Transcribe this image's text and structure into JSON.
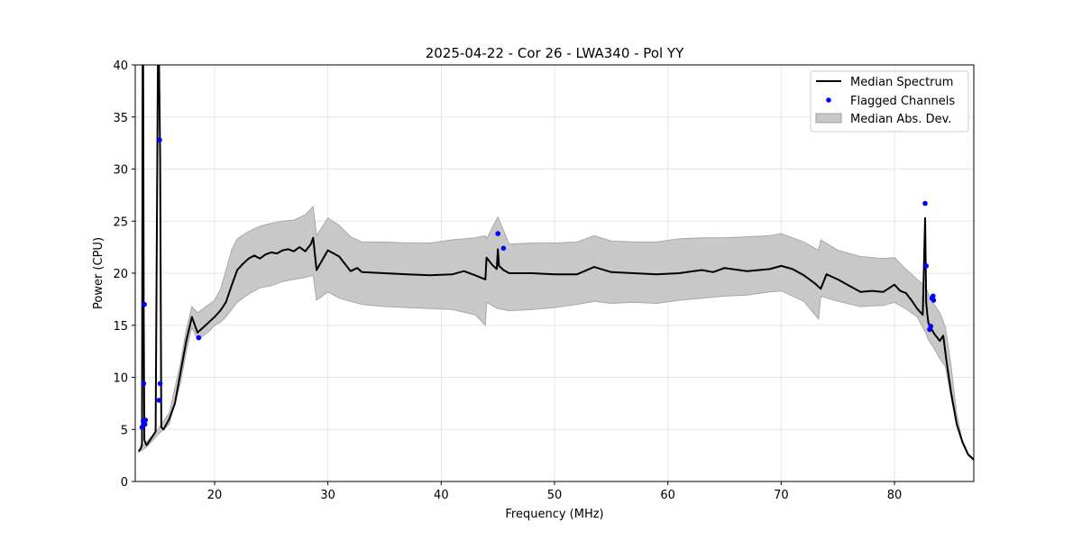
{
  "chart_data": {
    "type": "line",
    "title": "2025-04-22 - Cor 26 - LWA340 - Pol YY",
    "xlabel": "Frequency (MHz)",
    "ylabel": "Power (CPU)",
    "xlim": [
      13.0,
      87.0
    ],
    "ylim": [
      0,
      40
    ],
    "xticks": [
      20,
      30,
      40,
      50,
      60,
      70,
      80
    ],
    "yticks": [
      0,
      5,
      10,
      15,
      20,
      25,
      30,
      35,
      40
    ],
    "grid": true,
    "legend_position": "top-right",
    "series": [
      {
        "name": "Median Spectrum",
        "kind": "line",
        "color": "#000000",
        "x": [
          13.3,
          13.5,
          13.6,
          13.65,
          13.7,
          13.75,
          13.8,
          13.9,
          14.0,
          14.2,
          14.5,
          14.8,
          15.0,
          15.1,
          15.2,
          15.3,
          15.5,
          16.0,
          16.5,
          17.0,
          17.5,
          18.0,
          18.5,
          19.0,
          19.5,
          20.0,
          20.5,
          21.0,
          21.5,
          22.0,
          22.5,
          23.0,
          23.5,
          24.0,
          24.5,
          25.0,
          25.5,
          26.0,
          26.5,
          27.0,
          27.5,
          28.0,
          28.5,
          28.7,
          29.0,
          30.0,
          31.0,
          32.0,
          32.6,
          33.0,
          35.0,
          37.0,
          39.0,
          41.0,
          42.0,
          43.0,
          43.9,
          44.0,
          44.5,
          44.9,
          45.0,
          45.1,
          45.5,
          46.0,
          48.0,
          50.0,
          52.0,
          53.5,
          55.0,
          57.0,
          59.0,
          61.0,
          63.0,
          64.0,
          65.0,
          67.0,
          69.0,
          70.0,
          71.0,
          72.0,
          73.0,
          73.5,
          74.0,
          75.0,
          76.0,
          77.0,
          78.0,
          79.0,
          80.0,
          80.5,
          81.0,
          81.5,
          82.0,
          82.5,
          82.7,
          82.8,
          82.9,
          83.0,
          83.2,
          83.5,
          84.0,
          84.3,
          84.6,
          85.0,
          85.5,
          86.0,
          86.5,
          87.0
        ],
        "y": [
          2.9,
          3.2,
          3.6,
          40.0,
          40.0,
          16.0,
          4.0,
          3.7,
          3.5,
          3.8,
          4.3,
          4.8,
          40.0,
          40.0,
          31.2,
          5.2,
          5.0,
          6.0,
          7.5,
          10.5,
          13.5,
          15.8,
          14.3,
          14.8,
          15.3,
          15.8,
          16.4,
          17.2,
          18.8,
          20.3,
          20.9,
          21.4,
          21.7,
          21.4,
          21.8,
          22.0,
          21.9,
          22.2,
          22.3,
          22.1,
          22.5,
          22.1,
          22.8,
          23.4,
          20.3,
          22.2,
          21.6,
          20.2,
          20.5,
          20.1,
          20.0,
          19.9,
          19.8,
          19.9,
          20.2,
          19.8,
          19.4,
          21.5,
          20.8,
          20.4,
          22.3,
          20.7,
          20.3,
          20.0,
          20.0,
          19.9,
          19.9,
          20.6,
          20.1,
          20.0,
          19.9,
          20.0,
          20.3,
          20.1,
          20.5,
          20.2,
          20.4,
          20.7,
          20.4,
          19.8,
          19.0,
          18.5,
          19.9,
          19.4,
          18.8,
          18.2,
          18.3,
          18.2,
          18.9,
          18.3,
          18.1,
          17.4,
          16.6,
          16.0,
          25.3,
          17.2,
          16.0,
          15.2,
          14.8,
          14.2,
          13.5,
          14.0,
          11.5,
          8.5,
          5.5,
          3.8,
          2.6,
          2.1
        ]
      },
      {
        "name": "Flagged Channels",
        "kind": "scatter",
        "color": "#0000ff",
        "x": [
          13.6,
          13.7,
          13.75,
          13.8,
          13.85,
          13.9,
          15.1,
          15.15,
          15.2,
          18.6,
          45.0,
          45.5,
          82.7,
          82.8,
          83.1,
          83.2,
          83.3,
          83.4,
          83.45
        ],
        "y": [
          5.2,
          5.8,
          9.4,
          17.0,
          5.5,
          5.9,
          7.8,
          32.8,
          9.4,
          13.8,
          23.8,
          22.4,
          26.7,
          20.7,
          14.6,
          14.9,
          17.6,
          17.8,
          17.4
        ]
      },
      {
        "name": "Median Abs. Dev.",
        "kind": "band",
        "color": "#c8c8c8",
        "x": [
          13.3,
          14.0,
          15.0,
          16.0,
          17.0,
          17.5,
          18.0,
          18.5,
          19.0,
          19.5,
          20.0,
          20.5,
          21.0,
          21.5,
          22.0,
          23.0,
          24.0,
          25.0,
          26.0,
          27.0,
          28.0,
          28.7,
          29.0,
          30.0,
          31.0,
          32.0,
          33.0,
          35.0,
          37.0,
          39.0,
          41.0,
          43.0,
          43.9,
          44.0,
          45.0,
          46.0,
          48.0,
          50.0,
          52.0,
          53.5,
          55.0,
          57.0,
          59.0,
          61.0,
          63.0,
          65.0,
          67.0,
          69.0,
          70.0,
          72.0,
          73.3,
          73.5,
          75.0,
          77.0,
          79.0,
          80.0,
          81.0,
          82.0,
          82.7,
          83.0,
          83.5,
          84.0,
          84.5,
          85.0,
          85.5,
          86.0,
          86.5,
          87.0
        ],
        "lower": [
          2.8,
          3.3,
          4.5,
          5.5,
          9.5,
          12.5,
          14.8,
          13.6,
          14.0,
          14.4,
          15.0,
          15.3,
          15.8,
          16.5,
          17.2,
          18.0,
          18.6,
          18.8,
          19.2,
          19.4,
          19.6,
          19.8,
          17.4,
          18.2,
          17.6,
          17.3,
          17.0,
          16.8,
          16.7,
          16.6,
          16.5,
          16.0,
          15.0,
          17.2,
          16.6,
          16.4,
          16.5,
          16.7,
          17.0,
          17.3,
          17.1,
          17.2,
          17.1,
          17.4,
          17.6,
          17.8,
          17.9,
          18.2,
          18.3,
          17.3,
          15.6,
          17.8,
          17.3,
          16.8,
          16.9,
          17.2,
          16.6,
          15.8,
          14.4,
          13.6,
          12.8,
          11.8,
          11.0,
          8.0,
          5.3,
          3.6,
          2.5,
          2.0
        ],
        "upper": [
          3.0,
          3.8,
          5.0,
          6.6,
          11.4,
          14.6,
          16.8,
          16.2,
          16.6,
          17.0,
          17.4,
          18.4,
          20.2,
          22.2,
          23.3,
          24.0,
          24.5,
          24.8,
          25.0,
          25.1,
          25.6,
          26.4,
          23.6,
          25.3,
          24.6,
          23.5,
          23.0,
          23.0,
          22.9,
          22.9,
          23.2,
          23.4,
          23.6,
          23.3,
          25.4,
          22.8,
          22.9,
          22.9,
          23.0,
          23.6,
          23.1,
          23.0,
          23.0,
          23.3,
          23.4,
          23.4,
          23.5,
          23.6,
          23.8,
          23.0,
          22.2,
          23.2,
          22.2,
          21.6,
          21.4,
          21.5,
          20.4,
          19.4,
          18.8,
          18.0,
          17.0,
          16.2,
          14.8,
          11.0,
          6.5,
          3.8,
          2.7,
          2.1
        ]
      }
    ]
  }
}
